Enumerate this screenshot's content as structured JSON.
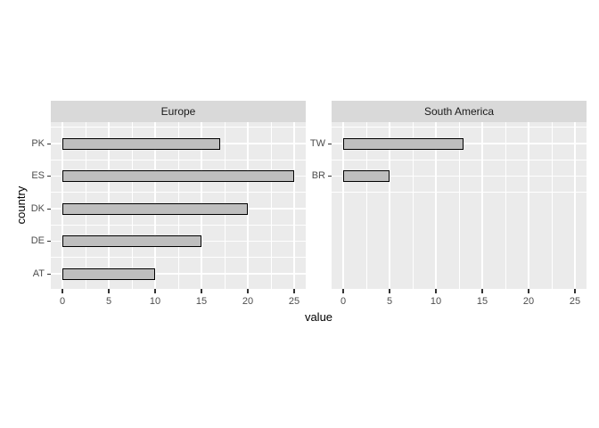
{
  "chart_data": {
    "type": "bar",
    "orientation": "horizontal",
    "title": "",
    "xlabel": "value",
    "ylabel": "country",
    "x_axis": {
      "ticks": [
        0,
        5,
        10,
        15,
        20,
        25
      ],
      "minor_ticks": [
        2.5,
        7.5,
        12.5,
        17.5,
        22.5
      ],
      "limits": [
        -1.25,
        26.25
      ]
    },
    "grid": true,
    "legend_position": "none",
    "facets": [
      {
        "label": "Europe",
        "categories": [
          "PK",
          "ES",
          "DK",
          "DE",
          "AT"
        ],
        "values": [
          17,
          25,
          20,
          15,
          10
        ]
      },
      {
        "label": "South America",
        "categories": [
          "TW",
          "BR"
        ],
        "values": [
          13,
          5
        ]
      }
    ]
  },
  "colors": {
    "panel_bg": "#EBEBEB",
    "strip_bg": "#D9D9D9",
    "strip_text": "#1A1A1A",
    "bar_fill": "#BEBEBE",
    "bar_border": "#000000",
    "grid_major": "#FFFFFF",
    "grid_minor": "#FFFFFF",
    "tick_mark": "#333333",
    "tick_label": "#4D4D4D",
    "axis_title": "#000000"
  }
}
